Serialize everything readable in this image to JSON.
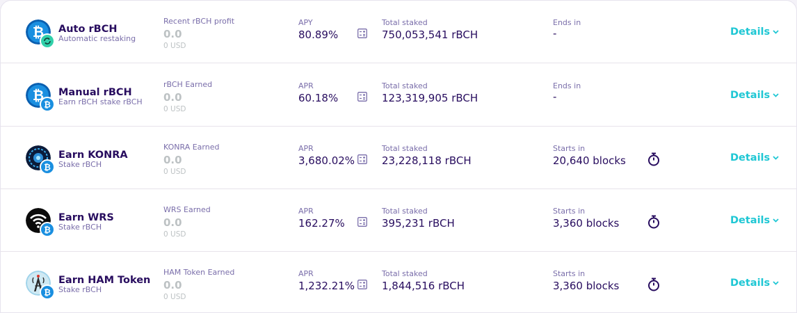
{
  "pools": [
    {
      "name": "Auto rBCH",
      "subtitle": "Automatic restaking",
      "earned_label": "Recent rBCH profit",
      "earned_value": "0.0",
      "earned_usd": "0 USD",
      "rate_label": "APY",
      "rate_value": "80.89%",
      "staked_label": "Total staked",
      "staked_value": "750,053,541 rBCH",
      "ends_label": "Ends in",
      "ends_value": "-",
      "details_label": "Details",
      "logo_icon": "bch-logo-icon",
      "badge_icon": "auto-restake-icon"
    },
    {
      "name": "Manual rBCH",
      "subtitle": "Earn rBCH stake rBCH",
      "earned_label": "rBCH Earned",
      "earned_value": "0.0",
      "earned_usd": "0 USD",
      "rate_label": "APR",
      "rate_value": "60.18%",
      "staked_label": "Total staked",
      "staked_value": "123,319,905 rBCH",
      "ends_label": "Ends in",
      "ends_value": "-",
      "details_label": "Details",
      "logo_icon": "bch-logo-icon",
      "badge_icon": "bch-badge-icon"
    },
    {
      "name": "Earn KONRA",
      "subtitle": "Stake rBCH",
      "earned_label": "KONRA Earned",
      "earned_value": "0.0",
      "earned_usd": "0 USD",
      "rate_label": "APR",
      "rate_value": "3,680.02%",
      "staked_label": "Total staked",
      "staked_value": "23,228,118 rBCH",
      "ends_label": "Starts in",
      "ends_value": "20,640 blocks",
      "details_label": "Details",
      "logo_icon": "konra-logo-icon",
      "badge_icon": "bch-badge-icon"
    },
    {
      "name": "Earn WRS",
      "subtitle": "Stake rBCH",
      "earned_label": "WRS Earned",
      "earned_value": "0.0",
      "earned_usd": "0 USD",
      "rate_label": "APR",
      "rate_value": "162.27%",
      "staked_label": "Total staked",
      "staked_value": "395,231 rBCH",
      "ends_label": "Starts in",
      "ends_value": "3,360 blocks",
      "details_label": "Details",
      "logo_icon": "wrs-wifi-logo-icon",
      "badge_icon": "bch-badge-icon"
    },
    {
      "name": "Earn HAM Token",
      "subtitle": "Stake rBCH",
      "earned_label": "HAM Token Earned",
      "earned_value": "0.0",
      "earned_usd": "0 USD",
      "rate_label": "APR",
      "rate_value": "1,232.21%",
      "staked_label": "Total staked",
      "staked_value": "1,844,516 rBCH",
      "ends_label": "Starts in",
      "ends_value": "3,360 blocks",
      "details_label": "Details",
      "logo_icon": "ham-tower-logo-icon",
      "badge_icon": "bch-badge-icon"
    }
  ],
  "colors": {
    "title": "#280d5f",
    "muted": "#7a6eaa",
    "disabled": "#bdc2c4",
    "accent": "#1fc7d4",
    "bch_blue": "#0d7fd6"
  }
}
